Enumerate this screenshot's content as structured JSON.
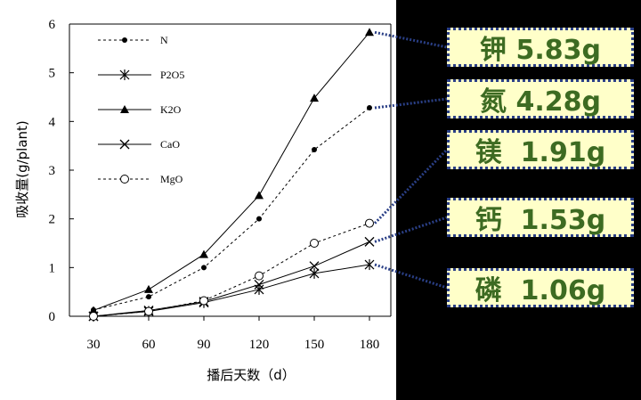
{
  "chart_data": {
    "type": "line",
    "xlabel": "播后天数（d）",
    "ylabel": "吸收量(g/plant)",
    "x": [
      30,
      60,
      90,
      120,
      150,
      180
    ],
    "xticks": [
      "30",
      "60",
      "90",
      "120",
      "150",
      "180"
    ],
    "yticks": [
      "0",
      "1",
      "2",
      "3",
      "4",
      "5",
      "6"
    ],
    "ylim": [
      0,
      6
    ],
    "xlim": [
      30,
      180
    ],
    "grid": false,
    "legend_position": "top-left",
    "series": [
      {
        "name": "N",
        "values": [
          0.13,
          0.4,
          1.0,
          2.0,
          3.42,
          4.28
        ],
        "marker": "dot",
        "dash": true
      },
      {
        "name": "P2O5",
        "values": [
          0.0,
          0.1,
          0.28,
          0.55,
          0.88,
          1.06
        ],
        "marker": "asterisk",
        "dash": false
      },
      {
        "name": "K2O",
        "values": [
          0.12,
          0.55,
          1.27,
          2.48,
          4.48,
          5.83
        ],
        "marker": "triangle",
        "dash": false
      },
      {
        "name": "CaO",
        "values": [
          0.0,
          0.12,
          0.3,
          0.65,
          1.03,
          1.53
        ],
        "marker": "x",
        "dash": false
      },
      {
        "name": "MgO",
        "values": [
          0.0,
          0.1,
          0.32,
          0.83,
          1.5,
          1.91
        ],
        "marker": "circle",
        "dash": true
      }
    ]
  },
  "callouts": [
    {
      "label": "钾 5.83g",
      "series": "K2O",
      "color": "#3d6b22"
    },
    {
      "label": "氮 4.28g",
      "series": "N",
      "color": "#3d6b22"
    },
    {
      "label": "镁  1.91g",
      "series": "MgO",
      "color": "#3d6b22"
    },
    {
      "label": "钙  1.53g",
      "series": "CaO",
      "color": "#3d6b22"
    },
    {
      "label": "磷  1.06g",
      "series": "P2O5",
      "color": "#3d6b22"
    }
  ],
  "colors": {
    "background": "#000000",
    "panel": "#ffffff",
    "callout_fill": "#ffffc9",
    "callout_border": "#2a3f86",
    "callout_text": "#3d6b22"
  }
}
